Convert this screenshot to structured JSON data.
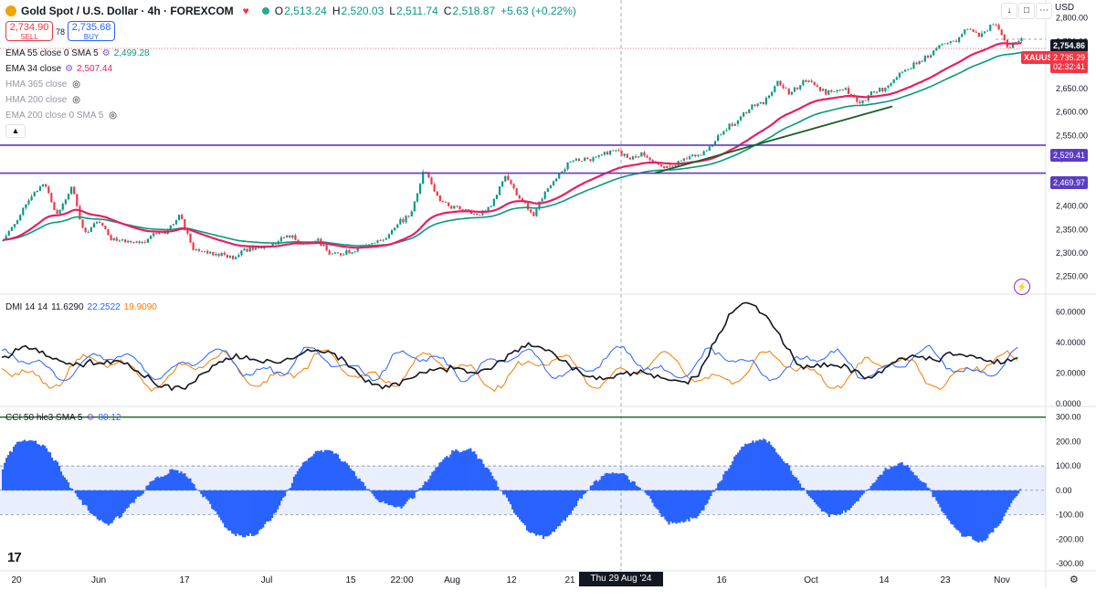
{
  "header": {
    "symbol": "Gold Spot / U.S. Dollar · 4h · FOREXCOM",
    "o_label": "O",
    "o": "2,513.24",
    "h_label": "H",
    "h": "2,520.03",
    "l_label": "L",
    "l": "2,511.74",
    "c_label": "C",
    "c": "2,518.87",
    "change": "+5.63 (+0.22%)"
  },
  "trade": {
    "sell_price": "2,734.90",
    "sell_label": "SELL",
    "spread": "78",
    "buy_price": "2,735.68",
    "buy_label": "BUY"
  },
  "indicators": {
    "ema55": {
      "name": "EMA 55 close 0 SMA 5",
      "value": "2,499.28",
      "color": "#089981"
    },
    "ema34": {
      "name": "EMA 34 close",
      "value": "2,507.44",
      "color": "#e91e63"
    },
    "hma365": {
      "name": "HMA 365 close"
    },
    "hma200": {
      "name": "HMA 200 close"
    },
    "ema200": {
      "name": "EMA 200 close 0 SMA 5"
    }
  },
  "currency": "USD",
  "price_labels": {
    "current": "2,754.86",
    "symbol_tag": "XAUUSD",
    "tag_price": "2,735.29",
    "countdown": "02:32:41",
    "line_upper": "2,529.41",
    "line_lower": "2,469.97"
  },
  "dmi_legend": {
    "name": "DMI 14 14",
    "adx": "11.6290",
    "plus_di": "22.2522",
    "minus_di": "19.9090"
  },
  "cci_legend": {
    "name": "CCI 50 hlc3 SMA 5",
    "value": "80.12"
  },
  "crosshair_date": "Thu 29 Aug '24   02:00",
  "colors": {
    "up": "#089981",
    "down": "#f23645",
    "ema34": "#e91e63",
    "ema55": "#089981",
    "hline": "#5b3cc4",
    "trend": "#1b5e20",
    "adx": "#131722",
    "plus_di": "#2962ff",
    "minus_di": "#f57c00",
    "cci": "#2962ff"
  },
  "chart_data": [
    {
      "type": "candlestick",
      "title": "Gold Spot / U.S. Dollar · 4h · FOREXCOM",
      "ylim": [
        2232,
        2815
      ],
      "y_ticks": [
        "2,800.00",
        "2,750.00",
        "2,700.00",
        "2,650.00",
        "2,600.00",
        "2,550.00",
        "2,500.00",
        "2,450.00",
        "2,400.00",
        "2,350.00",
        "2,300.00",
        "2,250.00"
      ],
      "x_ticks": [
        "20",
        "Jun",
        "17",
        "Jul",
        "15",
        "22:00",
        "Aug",
        "12",
        "21",
        "16",
        "Oct",
        "14",
        "23",
        "Nov"
      ],
      "price_path": [
        [
          2330,
          2370
        ],
        [
          2420,
          2450
        ],
        [
          2380,
          2440
        ],
        [
          2340,
          2370
        ],
        [
          2330,
          2330
        ],
        [
          2320,
          2340
        ],
        [
          2340,
          2380
        ],
        [
          2310,
          2300
        ],
        [
          2300,
          2290
        ],
        [
          2310,
          2310
        ],
        [
          2320,
          2340
        ],
        [
          2320,
          2330
        ],
        [
          2300,
          2300
        ],
        [
          2310,
          2320
        ],
        [
          2330,
          2360
        ],
        [
          2380,
          2480
        ],
        [
          2420,
          2400
        ],
        [
          2390,
          2380
        ],
        [
          2400,
          2470
        ],
        [
          2420,
          2380
        ],
        [
          2430,
          2470
        ],
        [
          2500,
          2500
        ],
        [
          2510,
          2520
        ],
        [
          2500,
          2510
        ],
        [
          2490,
          2480
        ],
        [
          2500,
          2510
        ],
        [
          2520,
          2560
        ],
        [
          2580,
          2610
        ],
        [
          2620,
          2660
        ],
        [
          2640,
          2670
        ],
        [
          2650,
          2640
        ],
        [
          2650,
          2620
        ],
        [
          2640,
          2650
        ],
        [
          2680,
          2700
        ],
        [
          2720,
          2740
        ],
        [
          2750,
          2780
        ],
        [
          2760,
          2790
        ],
        [
          2740,
          2750
        ]
      ],
      "ema34_path": [
        [
          2340,
          2390
        ],
        [
          2390,
          2360
        ],
        [
          2340,
          2330
        ],
        [
          2320,
          2320
        ],
        [
          2320,
          2330
        ],
        [
          2340,
          2380
        ],
        [
          2410,
          2400
        ],
        [
          2390,
          2400
        ],
        [
          2410,
          2440
        ],
        [
          2450,
          2470
        ],
        [
          2490,
          2500
        ],
        [
          2500,
          2500
        ],
        [
          2510,
          2560
        ],
        [
          2600,
          2620
        ],
        [
          2640,
          2650
        ],
        [
          2640,
          2630
        ],
        [
          2640,
          2670
        ],
        [
          2690,
          2720
        ],
        [
          2740,
          2760
        ],
        [
          2760,
          2750
        ]
      ],
      "horizontal_lines": [
        2529.41,
        2469.97
      ],
      "trendline": [
        [
          2470,
          2612
        ]
      ]
    },
    {
      "type": "line",
      "title": "DMI 14 14",
      "ylim": [
        0,
        68
      ],
      "y_ticks": [
        "60.0000",
        "40.0000",
        "20.0000",
        "0.0000"
      ],
      "series": [
        {
          "name": "ADX",
          "last": 11.629
        },
        {
          "name": "+DI",
          "last": 22.2522
        },
        {
          "name": "-DI",
          "last": 19.909
        }
      ]
    },
    {
      "type": "bar",
      "title": "CCI 50 hlc3 SMA 5",
      "ylim": [
        -300,
        310
      ],
      "y_ticks": [
        "300.00",
        "200.00",
        "100.00",
        "0.00",
        "-100.00",
        "-200.00",
        "-300.00"
      ],
      "band": [
        -100,
        100
      ],
      "last": 80.12
    }
  ]
}
